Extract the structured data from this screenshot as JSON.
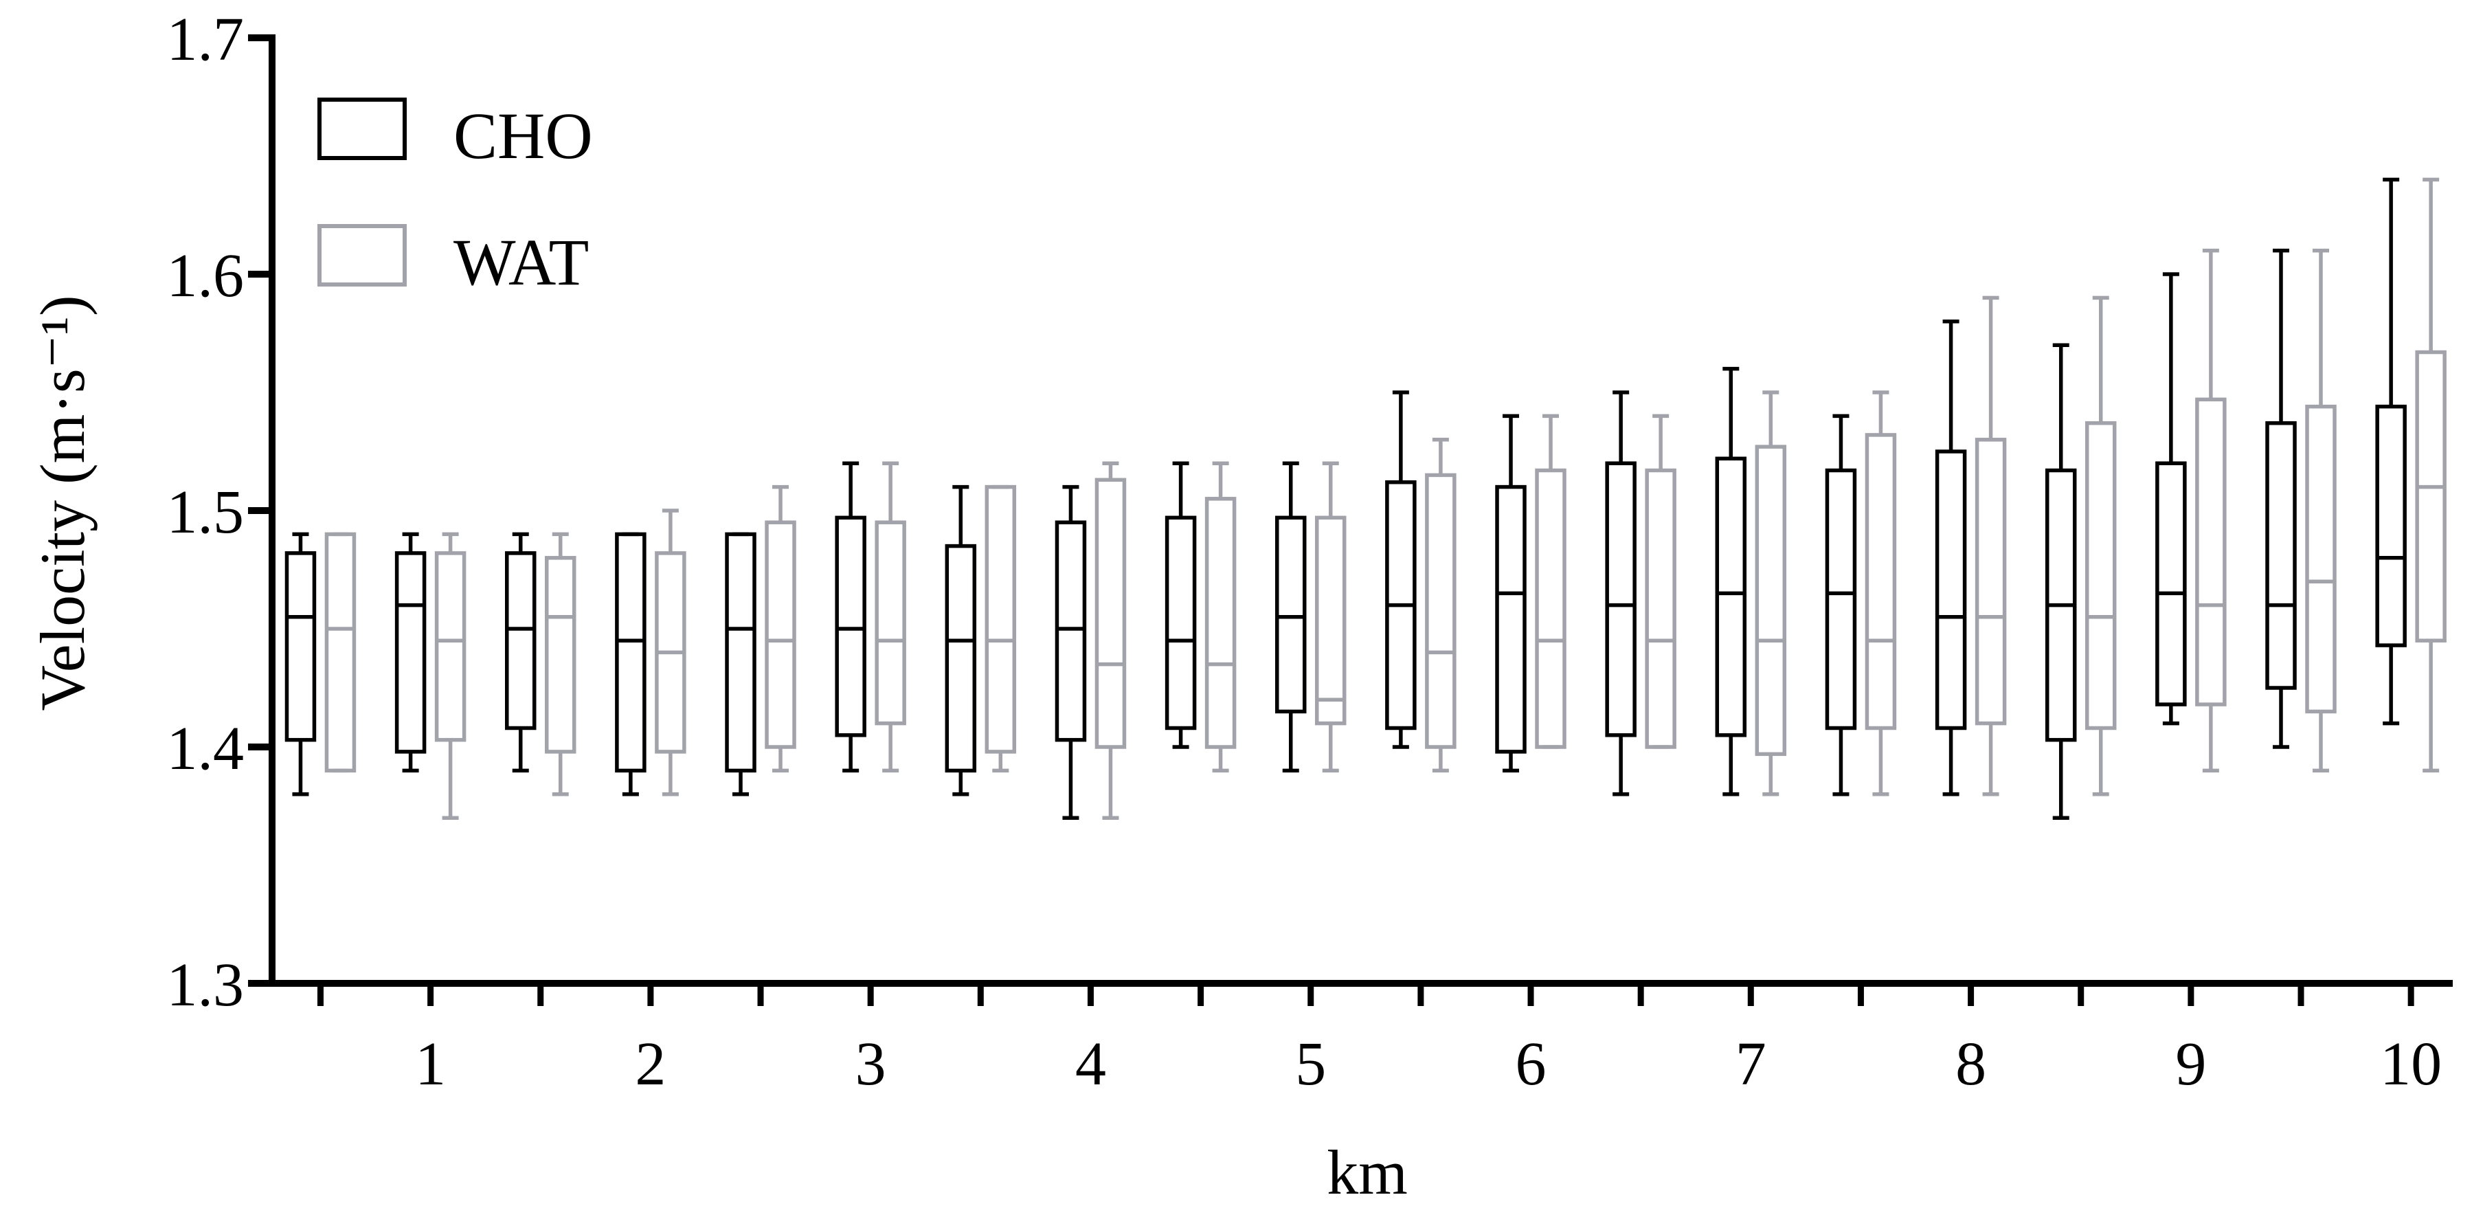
{
  "chart_data": {
    "type": "box",
    "xlabel": "km",
    "ylabel": "Velocity (m·s⁻¹)",
    "xlim": [
      0.28,
      10.19
    ],
    "ylim": [
      1.3,
      1.7
    ],
    "x": [
      0.5,
      1,
      1.5,
      2,
      2.5,
      3,
      3.5,
      4,
      4.5,
      5,
      5.5,
      6,
      6.5,
      7,
      7.5,
      8,
      8.5,
      9,
      9.5,
      10
    ],
    "xticks": [
      1,
      2,
      3,
      4,
      5,
      6,
      7,
      8,
      9,
      10
    ],
    "yticks": [
      1.3,
      1.4,
      1.5,
      1.6,
      1.7
    ],
    "grid": false,
    "legend": {
      "position": "top-left"
    },
    "series": [
      {
        "name": "CHO",
        "color": "#000000",
        "boxes": [
          {
            "min": 1.38,
            "q1": 1.403,
            "median": 1.455,
            "q3": 1.482,
            "max": 1.49
          },
          {
            "min": 1.39,
            "q1": 1.398,
            "median": 1.46,
            "q3": 1.482,
            "max": 1.49
          },
          {
            "min": 1.39,
            "q1": 1.408,
            "median": 1.45,
            "q3": 1.482,
            "max": 1.49
          },
          {
            "min": 1.38,
            "q1": 1.39,
            "median": 1.445,
            "q3": 1.49,
            "max": 1.49
          },
          {
            "min": 1.38,
            "q1": 1.39,
            "median": 1.45,
            "q3": 1.49,
            "max": 1.49
          },
          {
            "min": 1.39,
            "q1": 1.405,
            "median": 1.45,
            "q3": 1.497,
            "max": 1.52
          },
          {
            "min": 1.38,
            "q1": 1.39,
            "median": 1.445,
            "q3": 1.485,
            "max": 1.51
          },
          {
            "min": 1.37,
            "q1": 1.403,
            "median": 1.45,
            "q3": 1.495,
            "max": 1.51
          },
          {
            "min": 1.4,
            "q1": 1.408,
            "median": 1.445,
            "q3": 1.497,
            "max": 1.52
          },
          {
            "min": 1.39,
            "q1": 1.415,
            "median": 1.455,
            "q3": 1.497,
            "max": 1.52
          },
          {
            "min": 1.4,
            "q1": 1.408,
            "median": 1.46,
            "q3": 1.512,
            "max": 1.55
          },
          {
            "min": 1.39,
            "q1": 1.398,
            "median": 1.465,
            "q3": 1.51,
            "max": 1.54
          },
          {
            "min": 1.38,
            "q1": 1.405,
            "median": 1.46,
            "q3": 1.52,
            "max": 1.55
          },
          {
            "min": 1.38,
            "q1": 1.405,
            "median": 1.465,
            "q3": 1.522,
            "max": 1.56
          },
          {
            "min": 1.38,
            "q1": 1.408,
            "median": 1.465,
            "q3": 1.517,
            "max": 1.54
          },
          {
            "min": 1.38,
            "q1": 1.408,
            "median": 1.455,
            "q3": 1.525,
            "max": 1.58
          },
          {
            "min": 1.37,
            "q1": 1.403,
            "median": 1.46,
            "q3": 1.517,
            "max": 1.57
          },
          {
            "min": 1.41,
            "q1": 1.418,
            "median": 1.465,
            "q3": 1.52,
            "max": 1.6
          },
          {
            "min": 1.4,
            "q1": 1.425,
            "median": 1.46,
            "q3": 1.537,
            "max": 1.61
          },
          {
            "min": 1.41,
            "q1": 1.443,
            "median": 1.48,
            "q3": 1.544,
            "max": 1.64
          }
        ]
      },
      {
        "name": "WAT",
        "color": "#a2a3aa",
        "boxes": [
          {
            "min": 1.39,
            "q1": 1.39,
            "median": 1.45,
            "q3": 1.49,
            "max": 1.49
          },
          {
            "min": 1.37,
            "q1": 1.403,
            "median": 1.445,
            "q3": 1.482,
            "max": 1.49
          },
          {
            "min": 1.38,
            "q1": 1.398,
            "median": 1.455,
            "q3": 1.48,
            "max": 1.49
          },
          {
            "min": 1.38,
            "q1": 1.398,
            "median": 1.44,
            "q3": 1.482,
            "max": 1.5
          },
          {
            "min": 1.39,
            "q1": 1.4,
            "median": 1.445,
            "q3": 1.495,
            "max": 1.51
          },
          {
            "min": 1.39,
            "q1": 1.41,
            "median": 1.445,
            "q3": 1.495,
            "max": 1.52
          },
          {
            "min": 1.39,
            "q1": 1.398,
            "median": 1.445,
            "q3": 1.51,
            "max": 1.51
          },
          {
            "min": 1.37,
            "q1": 1.4,
            "median": 1.435,
            "q3": 1.513,
            "max": 1.52
          },
          {
            "min": 1.39,
            "q1": 1.4,
            "median": 1.435,
            "q3": 1.505,
            "max": 1.52
          },
          {
            "min": 1.39,
            "q1": 1.41,
            "median": 1.42,
            "q3": 1.497,
            "max": 1.52
          },
          {
            "min": 1.39,
            "q1": 1.4,
            "median": 1.44,
            "q3": 1.515,
            "max": 1.53
          },
          {
            "min": 1.4,
            "q1": 1.4,
            "median": 1.445,
            "q3": 1.517,
            "max": 1.54
          },
          {
            "min": 1.4,
            "q1": 1.4,
            "median": 1.445,
            "q3": 1.517,
            "max": 1.54
          },
          {
            "min": 1.38,
            "q1": 1.397,
            "median": 1.445,
            "q3": 1.527,
            "max": 1.55
          },
          {
            "min": 1.38,
            "q1": 1.408,
            "median": 1.445,
            "q3": 1.532,
            "max": 1.55
          },
          {
            "min": 1.38,
            "q1": 1.41,
            "median": 1.455,
            "q3": 1.53,
            "max": 1.59
          },
          {
            "min": 1.38,
            "q1": 1.408,
            "median": 1.455,
            "q3": 1.537,
            "max": 1.59
          },
          {
            "min": 1.39,
            "q1": 1.418,
            "median": 1.46,
            "q3": 1.547,
            "max": 1.61
          },
          {
            "min": 1.39,
            "q1": 1.415,
            "median": 1.47,
            "q3": 1.544,
            "max": 1.61
          },
          {
            "min": 1.39,
            "q1": 1.445,
            "median": 1.51,
            "q3": 1.567,
            "max": 1.64
          }
        ]
      }
    ]
  }
}
